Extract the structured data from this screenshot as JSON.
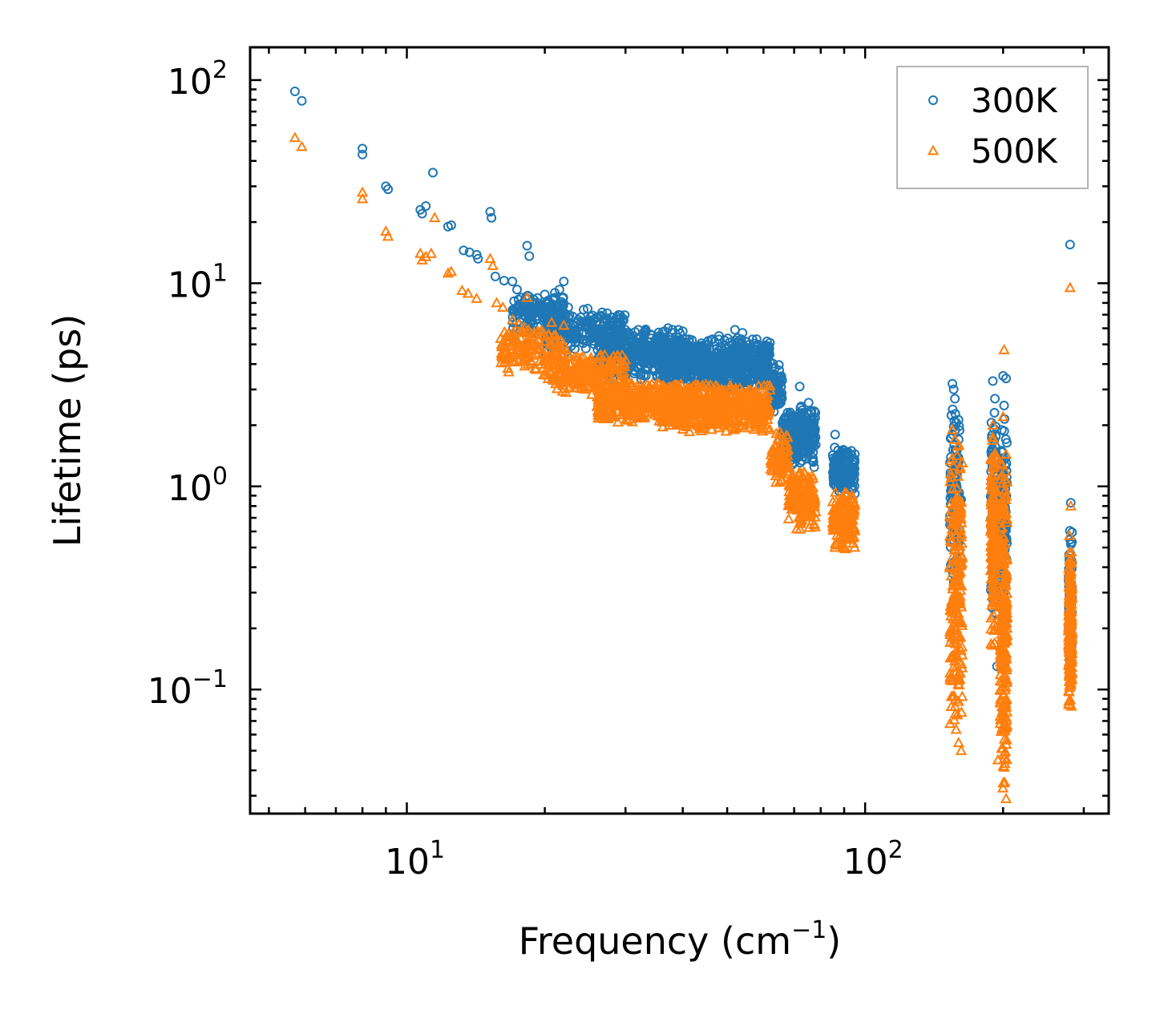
{
  "chart_data": {
    "type": "scatter",
    "title": "",
    "xlabel": "Frequency (cm",
    "xlabel_sup": "−1",
    "xlabel_end": ")",
    "ylabel": "Lifetime (ps)",
    "xscale": "log",
    "yscale": "log",
    "xlim": [
      4.55,
      340
    ],
    "ylim": [
      0.0245,
      145
    ],
    "xticks": [
      {
        "value": 10,
        "base": "10",
        "exp": "1"
      },
      {
        "value": 100,
        "base": "10",
        "exp": "2"
      }
    ],
    "yticks": [
      {
        "value": 0.1,
        "base": "10",
        "exp": "−1"
      },
      {
        "value": 1,
        "base": "10",
        "exp": "0"
      },
      {
        "value": 10,
        "base": "10",
        "exp": "1"
      },
      {
        "value": 100,
        "base": "10",
        "exp": "2"
      }
    ],
    "legend_position": "top-right",
    "series": [
      {
        "name": "300K",
        "marker": "circle",
        "color": "#1f77b4",
        "points": [
          [
            5.7,
            88
          ],
          [
            5.9,
            79
          ],
          [
            8,
            46
          ],
          [
            8,
            43
          ],
          [
            9,
            30
          ],
          [
            9.1,
            29
          ],
          [
            10.7,
            23
          ],
          [
            10.8,
            22
          ],
          [
            11,
            24
          ],
          [
            11.4,
            35
          ],
          [
            12.3,
            19
          ],
          [
            12.5,
            19.3
          ],
          [
            13.3,
            14.5
          ],
          [
            13.7,
            14.2
          ],
          [
            14.2,
            13.8
          ],
          [
            14.3,
            13.2
          ],
          [
            15.2,
            22.5
          ],
          [
            15.3,
            21
          ],
          [
            15.6,
            10.8
          ],
          [
            16.3,
            10.3
          ],
          [
            17,
            10.2
          ],
          [
            17.4,
            9.3
          ],
          [
            18.3,
            15.3
          ],
          [
            18.5,
            13.6
          ],
          [
            20,
            8.8
          ],
          [
            21,
            5.8
          ],
          [
            22,
            10.2
          ],
          [
            22.5,
            7.6
          ],
          [
            24.8,
            7.5
          ],
          [
            26,
            6.5
          ],
          [
            28,
            6.8
          ],
          [
            29,
            6.2
          ],
          [
            32,
            5.9
          ],
          [
            34,
            5.6
          ],
          [
            38,
            5.9
          ],
          [
            40,
            5.8
          ],
          [
            48,
            5.5
          ],
          [
            52,
            5.9
          ],
          [
            54,
            5.7
          ],
          [
            56,
            5
          ],
          [
            58,
            4.3
          ],
          [
            62,
            4.1
          ],
          [
            69,
            2.2
          ],
          [
            72,
            3.1
          ],
          [
            78,
            1.6
          ],
          [
            86,
            1.8
          ],
          [
            90,
            1.5
          ],
          [
            93,
            1.1
          ],
          [
            95,
            0.92
          ],
          [
            155,
            3.2
          ],
          [
            156,
            3
          ],
          [
            157,
            2.7
          ],
          [
            160,
            1.7
          ],
          [
            162,
            0.86
          ],
          [
            190,
            3.3
          ],
          [
            192,
            2.7
          ],
          [
            194,
            0.13
          ],
          [
            200,
            3.5
          ],
          [
            201,
            2.5
          ],
          [
            203,
            3.4
          ],
          [
            280,
            15.5
          ],
          [
            281,
            0.83
          ]
        ],
        "bands": [
          {
            "x": [
              17,
              22
            ],
            "y": [
              5.5,
              9.5
            ],
            "n": 150
          },
          {
            "x": [
              20,
              30
            ],
            "y": [
              4.5,
              7.5
            ],
            "n": 220
          },
          {
            "x": [
              26,
              40
            ],
            "y": [
              3.3,
              6.2
            ],
            "n": 380
          },
          {
            "x": [
              36,
              62
            ],
            "y": [
              3.0,
              5.5
            ],
            "n": 650
          },
          {
            "x": [
              62,
              66
            ],
            "y": [
              2.2,
              4.2
            ],
            "n": 80
          },
          {
            "x": [
              66,
              72
            ],
            "y": [
              1.2,
              2.5
            ],
            "n": 120
          },
          {
            "x": [
              72,
              78
            ],
            "y": [
              1.2,
              2.7
            ],
            "n": 120
          },
          {
            "x": [
              85,
              95
            ],
            "y": [
              0.9,
              1.6
            ],
            "n": 160
          },
          {
            "x": [
              153,
              161
            ],
            "y": [
              0.3,
              2.5
            ],
            "n": 100
          },
          {
            "x": [
              188,
              193
            ],
            "y": [
              0.2,
              2.8
            ],
            "n": 100
          },
          {
            "x": [
              197,
              204
            ],
            "y": [
              0.25,
              2.3
            ],
            "n": 120
          },
          {
            "x": [
              278,
              283
            ],
            "y": [
              0.12,
              0.7
            ],
            "n": 70
          }
        ]
      },
      {
        "name": "500K",
        "marker": "triangle",
        "color": "#ff7f0e",
        "points": [
          [
            5.7,
            52
          ],
          [
            5.9,
            47
          ],
          [
            8,
            28
          ],
          [
            8,
            26
          ],
          [
            9,
            18
          ],
          [
            9.1,
            17
          ],
          [
            10.7,
            14
          ],
          [
            10.8,
            13
          ],
          [
            11,
            13.5
          ],
          [
            11.3,
            14
          ],
          [
            11.5,
            21
          ],
          [
            12.3,
            11.2
          ],
          [
            12.5,
            11.4
          ],
          [
            13.2,
            9.2
          ],
          [
            13.6,
            8.9
          ],
          [
            14.2,
            8.4
          ],
          [
            15.2,
            13.2
          ],
          [
            15.4,
            12.2
          ],
          [
            15.7,
            8
          ],
          [
            16.2,
            7.6
          ],
          [
            17,
            6.6
          ],
          [
            18.3,
            8.5
          ],
          [
            20,
            4.3
          ],
          [
            22,
            6.2
          ],
          [
            22.5,
            4.5
          ],
          [
            25,
            3.7
          ],
          [
            26,
            3.2
          ],
          [
            28,
            2.4
          ],
          [
            31,
            2.6
          ],
          [
            34,
            2.5
          ],
          [
            40,
            2.6
          ],
          [
            46,
            2.2
          ],
          [
            48,
            2.5
          ],
          [
            52,
            2.2
          ],
          [
            55,
            2.8
          ],
          [
            58,
            1.95
          ],
          [
            62,
            1.9
          ],
          [
            68,
            1.15
          ],
          [
            72,
            0.85
          ],
          [
            78,
            0.75
          ],
          [
            86,
            0.5
          ],
          [
            90,
            0.55
          ],
          [
            93,
            0.56
          ],
          [
            155,
            1.9
          ],
          [
            157,
            1.7
          ],
          [
            160,
            1.6
          ],
          [
            162,
            0.05
          ],
          [
            190,
            2
          ],
          [
            195,
            0.045
          ],
          [
            200,
            2.2
          ],
          [
            201,
            4.7
          ],
          [
            203,
            0.029
          ],
          [
            280,
            9.5
          ],
          [
            281,
            0.8
          ]
        ],
        "bands": [
          {
            "x": [
              16,
              22
            ],
            "y": [
              3.5,
              6.5
            ],
            "n": 150
          },
          {
            "x": [
              20,
              30
            ],
            "y": [
              2.8,
              4.6
            ],
            "n": 220
          },
          {
            "x": [
              26,
              40
            ],
            "y": [
              2.0,
              3.4
            ],
            "n": 380
          },
          {
            "x": [
              36,
              62
            ],
            "y": [
              1.8,
              3.3
            ],
            "n": 650
          },
          {
            "x": [
              62,
              68
            ],
            "y": [
              1.0,
              2.0
            ],
            "n": 80
          },
          {
            "x": [
              68,
              78
            ],
            "y": [
              0.6,
              1.3
            ],
            "n": 150
          },
          {
            "x": [
              85,
              95
            ],
            "y": [
              0.48,
              1.0
            ],
            "n": 160
          },
          {
            "x": [
              153,
              163
            ],
            "y": [
              0.05,
              1.7
            ],
            "n": 220
          },
          {
            "x": [
              188,
              193
            ],
            "y": [
              0.15,
              2.0
            ],
            "n": 150
          },
          {
            "x": [
              197,
              204
            ],
            "y": [
              0.029,
              1.6
            ],
            "n": 260
          },
          {
            "x": [
              278,
              283
            ],
            "y": [
              0.07,
              0.6
            ],
            "n": 200
          }
        ]
      }
    ]
  }
}
